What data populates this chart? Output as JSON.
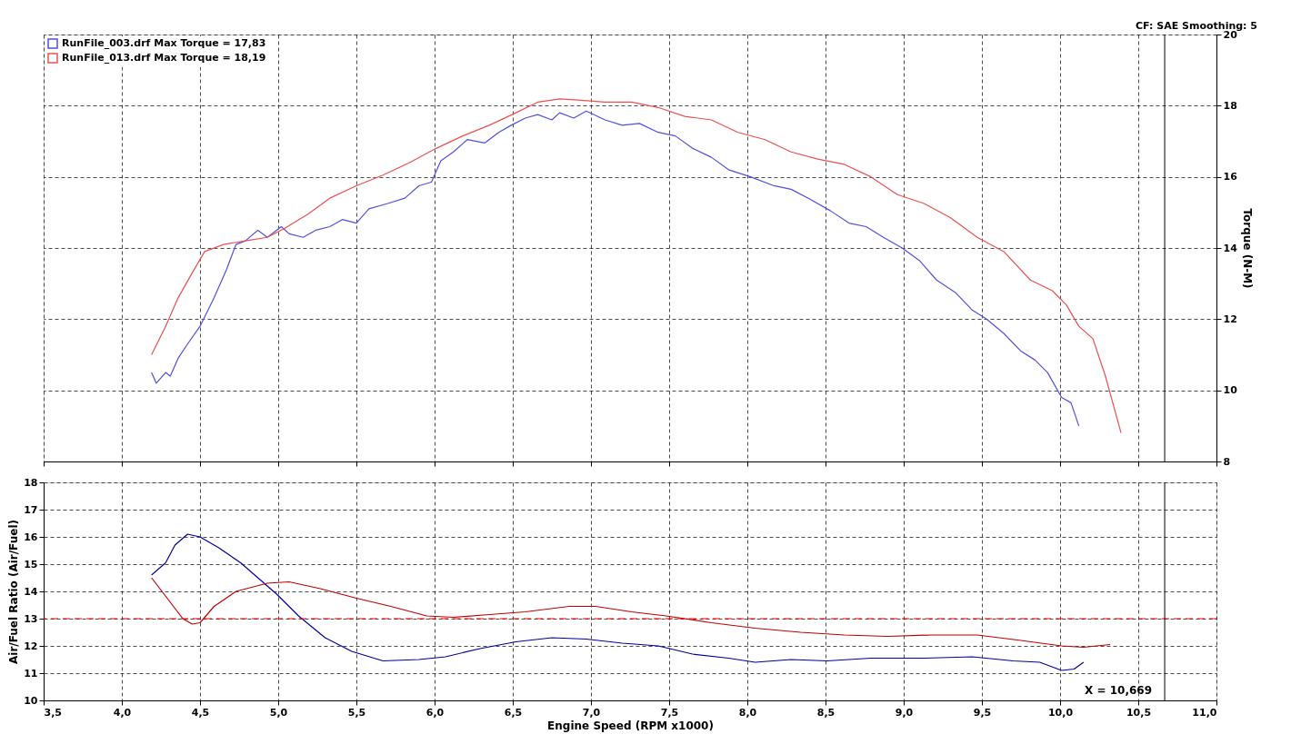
{
  "chart_data": [
    {
      "type": "line",
      "annotations": [
        "CF: SAE  Smoothing: 5"
      ],
      "y2label": "Torque (N-M)",
      "legend": "top left",
      "grid": true,
      "marker": "none",
      "line_style": "solid",
      "tick_labels": "y",
      "xlim": [
        3.5,
        11.0
      ],
      "xticks": [
        3.5,
        4.0,
        4.5,
        5.0,
        5.5,
        6.0,
        6.5,
        7.0,
        7.5,
        8.0,
        8.5,
        9.0,
        9.5,
        10.0,
        10.5,
        11.0
      ],
      "y2lim": [
        8,
        20
      ],
      "y2ticks": [
        8,
        10,
        12,
        14,
        16,
        18,
        20
      ],
      "ref_lines": [
        {
          "axis": "x",
          "value": 10.669,
          "color": "#000000",
          "line_style": "solid"
        }
      ],
      "series": [
        {
          "name": "RunFile_003.drf Max Torque = 17,83",
          "color": "#5050e0",
          "axis": "y2",
          "x": [
            4.19,
            4.22,
            4.28,
            4.31,
            4.36,
            4.42,
            4.5,
            4.59,
            4.67,
            4.73,
            4.79,
            4.87,
            4.93,
            5.02,
            5.07,
            5.16,
            5.24,
            5.33,
            5.41,
            5.5,
            5.58,
            5.7,
            5.81,
            5.9,
            5.98,
            6.04,
            6.12,
            6.21,
            6.32,
            6.41,
            6.49,
            6.58,
            6.66,
            6.75,
            6.8,
            6.89,
            6.97,
            7.09,
            7.2,
            7.31,
            7.43,
            7.54,
            7.65,
            7.77,
            7.88,
            8.02,
            8.17,
            8.28,
            8.39,
            8.53,
            8.65,
            8.76,
            8.87,
            8.99,
            9.1,
            9.21,
            9.33,
            9.44,
            9.53,
            9.64,
            9.75,
            9.84,
            9.92,
            10.01,
            10.07,
            10.12
          ],
          "values": [
            10.5,
            10.2,
            10.5,
            10.4,
            10.9,
            11.3,
            11.8,
            12.6,
            13.4,
            14.1,
            14.2,
            14.5,
            14.3,
            14.6,
            14.4,
            14.3,
            14.5,
            14.6,
            14.8,
            14.7,
            15.1,
            15.25,
            15.4,
            15.75,
            15.85,
            16.45,
            16.7,
            17.05,
            16.95,
            17.25,
            17.45,
            17.65,
            17.75,
            17.6,
            17.8,
            17.65,
            17.85,
            17.6,
            17.45,
            17.5,
            17.25,
            17.15,
            16.8,
            16.55,
            16.2,
            16.0,
            15.75,
            15.65,
            15.4,
            15.05,
            14.7,
            14.6,
            14.3,
            14.0,
            13.65,
            13.1,
            12.75,
            12.25,
            12.0,
            11.6,
            11.1,
            10.85,
            10.5,
            9.8,
            9.65,
            9.0
          ]
        },
        {
          "name": "RunFile_013.drf Max Torque = 18,19",
          "color": "#ee5050",
          "axis": "y2",
          "x": [
            4.19,
            4.28,
            4.36,
            4.45,
            4.53,
            4.65,
            4.79,
            4.93,
            5.04,
            5.19,
            5.33,
            5.5,
            5.67,
            5.84,
            6.01,
            6.18,
            6.35,
            6.52,
            6.66,
            6.8,
            6.94,
            7.09,
            7.26,
            7.43,
            7.6,
            7.77,
            7.94,
            8.11,
            8.28,
            8.45,
            8.62,
            8.79,
            8.96,
            9.13,
            9.3,
            9.47,
            9.64,
            9.81,
            9.95,
            10.04,
            10.12,
            10.21,
            10.29,
            10.39
          ],
          "values": [
            11.0,
            11.8,
            12.6,
            13.3,
            13.9,
            14.1,
            14.2,
            14.3,
            14.55,
            14.95,
            15.4,
            15.75,
            16.05,
            16.4,
            16.8,
            17.15,
            17.45,
            17.8,
            18.1,
            18.19,
            18.15,
            18.1,
            18.1,
            17.95,
            17.7,
            17.6,
            17.25,
            17.05,
            16.7,
            16.5,
            16.35,
            16.0,
            15.5,
            15.25,
            14.85,
            14.3,
            13.9,
            13.1,
            12.8,
            12.4,
            11.8,
            11.45,
            10.4,
            8.8
          ]
        }
      ]
    },
    {
      "type": "line",
      "xlabel": "Engine Speed (RPM x1000)",
      "ylabel": "Air/Fuel Ratio (Air/Fuel)",
      "grid": true,
      "marker": "none",
      "line_style": "solid",
      "xlim": [
        3.5,
        11.0
      ],
      "xticks": [
        {
          "value": 3.5,
          "label": "3,5"
        },
        {
          "value": 4.0,
          "label": "4,0"
        },
        {
          "value": 4.5,
          "label": "4,5"
        },
        {
          "value": 5.0,
          "label": "5,0"
        },
        {
          "value": 5.5,
          "label": "5,5"
        },
        {
          "value": 6.0,
          "label": "6,0"
        },
        {
          "value": 6.5,
          "label": "6,5"
        },
        {
          "value": 7.0,
          "label": "7,0"
        },
        {
          "value": 7.5,
          "label": "7,5"
        },
        {
          "value": 8.0,
          "label": "8,0"
        },
        {
          "value": 8.5,
          "label": "8,5"
        },
        {
          "value": 9.0,
          "label": "9,0"
        },
        {
          "value": 9.5,
          "label": "9,5"
        },
        {
          "value": 10.0,
          "label": "10,0"
        },
        {
          "value": 10.5,
          "label": "10,5"
        },
        {
          "value": 11.0,
          "label": "11,0"
        }
      ],
      "ylim": [
        10,
        18
      ],
      "yticks": [
        10,
        11,
        12,
        13,
        14,
        15,
        16,
        17,
        18
      ],
      "ref_lines": [
        {
          "axis": "y",
          "value": 13,
          "color": "#ff0000",
          "line_style": "dashed"
        },
        {
          "axis": "x",
          "value": 10.669,
          "label": "X = 10,669",
          "color": "#000000",
          "line_style": "solid"
        }
      ],
      "series": [
        {
          "color": "#0000a0",
          "x": [
            4.19,
            4.28,
            4.34,
            4.42,
            4.5,
            4.62,
            4.76,
            4.87,
            4.99,
            5.13,
            5.3,
            5.47,
            5.67,
            5.9,
            6.07,
            6.29,
            6.52,
            6.75,
            6.97,
            7.2,
            7.43,
            7.65,
            7.88,
            8.05,
            8.28,
            8.51,
            8.79,
            9.13,
            9.44,
            9.7,
            9.87,
            10.01,
            10.09,
            10.15
          ],
          "values": [
            14.6,
            15.05,
            15.7,
            16.1,
            16.0,
            15.6,
            15.05,
            14.5,
            13.9,
            13.1,
            12.3,
            11.8,
            11.45,
            11.5,
            11.6,
            11.9,
            12.15,
            12.3,
            12.25,
            12.1,
            12.0,
            11.7,
            11.55,
            11.4,
            11.5,
            11.45,
            11.55,
            11.55,
            11.6,
            11.45,
            11.4,
            11.1,
            11.15,
            11.4
          ]
        },
        {
          "color": "#c00000",
          "x": [
            4.19,
            4.31,
            4.39,
            4.45,
            4.5,
            4.59,
            4.73,
            4.93,
            5.07,
            5.27,
            5.5,
            5.72,
            5.95,
            6.12,
            6.35,
            6.58,
            6.86,
            7.03,
            7.26,
            7.48,
            7.77,
            8.05,
            8.34,
            8.62,
            8.9,
            9.18,
            9.47,
            9.75,
            10.01,
            10.15,
            10.32
          ],
          "values": [
            14.5,
            13.6,
            13.0,
            12.8,
            12.85,
            13.45,
            14.0,
            14.3,
            14.35,
            14.1,
            13.75,
            13.45,
            13.1,
            13.05,
            13.15,
            13.25,
            13.45,
            13.45,
            13.25,
            13.1,
            12.85,
            12.65,
            12.5,
            12.4,
            12.35,
            12.4,
            12.4,
            12.2,
            12.0,
            11.95,
            12.05
          ]
        }
      ]
    }
  ]
}
